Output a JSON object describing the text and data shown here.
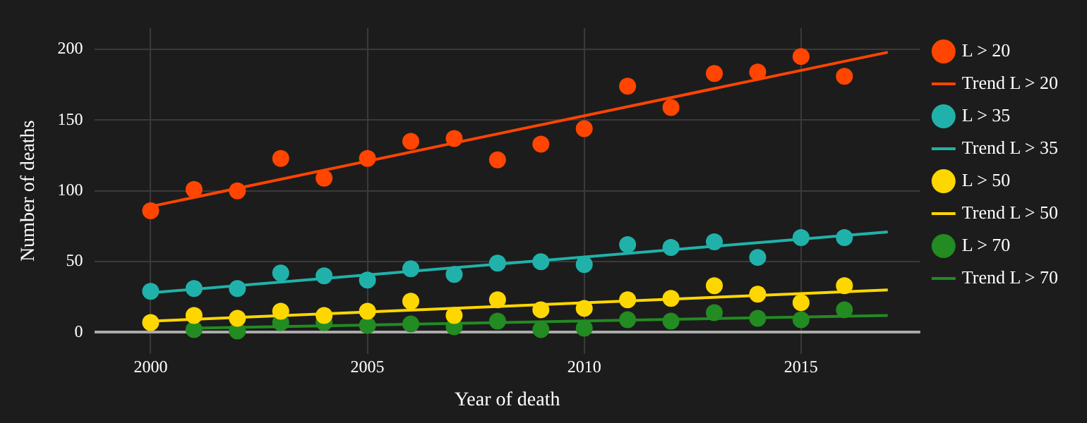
{
  "chart_data": {
    "type": "scatter",
    "xlabel": "Year of death",
    "ylabel": "Number of deaths",
    "x": [
      2000,
      2001,
      2002,
      2003,
      2004,
      2005,
      2006,
      2007,
      2008,
      2009,
      2010,
      2011,
      2012,
      2013,
      2014,
      2015,
      2016
    ],
    "xlim": [
      1998.7,
      2017.75
    ],
    "xticks": [
      2000,
      2005,
      2010,
      2015
    ],
    "ylim": [
      -15,
      215
    ],
    "yticks": [
      0,
      50,
      100,
      150,
      200
    ],
    "grid": true,
    "legend": "top right",
    "series": [
      {
        "name": "L > 20",
        "marker": "circle",
        "color": "#ff4500",
        "values": [
          86,
          101,
          100,
          123,
          109,
          123,
          135,
          137,
          122,
          133,
          144,
          174,
          159,
          183,
          184,
          195,
          181
        ]
      },
      {
        "name": "Trend L > 20",
        "type": "line",
        "marker": "none",
        "color": "#ff4500",
        "x": [
          2000,
          2017
        ],
        "values": [
          89,
          198
        ]
      },
      {
        "name": "L > 35",
        "marker": "circle",
        "color": "#20b2aa",
        "values": [
          29,
          31,
          31,
          42,
          40,
          37,
          45,
          41,
          49,
          50,
          48,
          62,
          60,
          64,
          53,
          67,
          67
        ]
      },
      {
        "name": "Trend L > 35",
        "type": "line",
        "marker": "none",
        "color": "#20b2aa",
        "x": [
          2000,
          2017
        ],
        "values": [
          28,
          71
        ]
      },
      {
        "name": "L > 50",
        "marker": "circle",
        "color": "#ffd700",
        "values": [
          7,
          12,
          10,
          15,
          12,
          15,
          22,
          12,
          23,
          16,
          17,
          23,
          24,
          33,
          27,
          21,
          33
        ]
      },
      {
        "name": "Trend L > 50",
        "type": "line",
        "marker": "none",
        "color": "#ffd700",
        "x": [
          2000,
          2017
        ],
        "values": [
          8,
          30
        ]
      },
      {
        "name": "L > 70",
        "marker": "circle",
        "color": "#228b22",
        "x": [
          2001,
          2002,
          2003,
          2004,
          2005,
          2006,
          2007,
          2008,
          2009,
          2010,
          2011,
          2012,
          2013,
          2014,
          2015,
          2016
        ],
        "values": [
          2,
          1,
          7,
          7,
          5,
          6,
          4,
          8,
          2,
          3,
          9,
          8,
          14,
          10,
          9,
          16
        ]
      },
      {
        "name": "Trend L > 70",
        "type": "line",
        "marker": "none",
        "color": "#228b22",
        "x": [
          2001,
          2017
        ],
        "values": [
          3,
          12
        ]
      }
    ]
  }
}
